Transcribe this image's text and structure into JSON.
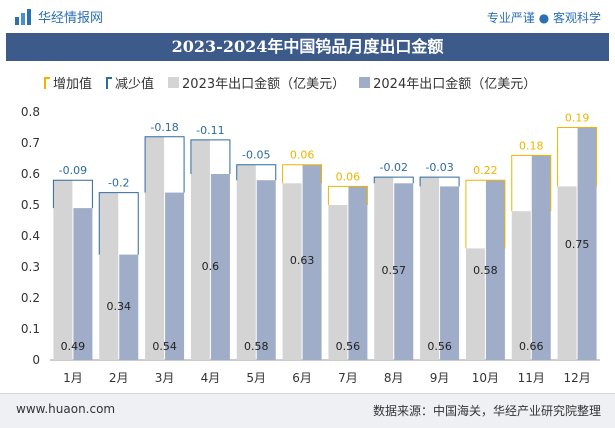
{
  "header": {
    "site_name": "华经情报网",
    "tagline": "专业严谨 ● 客观科学",
    "title": "2023-2024年中国钨品月度出口金额"
  },
  "legend": {
    "increase": "增加值",
    "decrease": "减少值",
    "series_2023": "2023年出口金额（亿美元）",
    "series_2024": "2024年出口金额（亿美元）"
  },
  "footer": {
    "website": "www.huaon.com",
    "source": "数据来源：中国海关，华经产业研究院整理"
  },
  "colors": {
    "bar_2023": "#d4d4d4",
    "bar_2024": "#9fadc8",
    "increase": "#f0b400",
    "decrease": "#2e6aa0",
    "title_band": "#3c5a8a"
  },
  "chart_data": {
    "type": "bar",
    "categories": [
      "1月",
      "2月",
      "3月",
      "4月",
      "5月",
      "6月",
      "7月",
      "8月",
      "9月",
      "10月",
      "11月",
      "12月"
    ],
    "series": [
      {
        "name": "2023年出口金额（亿美元）",
        "values": [
          0.58,
          0.54,
          0.72,
          0.71,
          0.63,
          0.57,
          0.5,
          0.59,
          0.59,
          0.36,
          0.48,
          0.56
        ]
      },
      {
        "name": "2024年出口金额（亿美元）",
        "values": [
          0.49,
          0.34,
          0.54,
          0.6,
          0.58,
          0.63,
          0.56,
          0.57,
          0.56,
          0.58,
          0.66,
          0.75
        ]
      }
    ],
    "change": [
      -0.09,
      -0.2,
      -0.18,
      -0.11,
      -0.05,
      0.06,
      0.06,
      -0.02,
      -0.03,
      0.22,
      0.18,
      0.19
    ],
    "change_labels": [
      "-0.09",
      "-0.2",
      "-0.18",
      "-0.11",
      "-0.05",
      "0.06",
      "0.06",
      "-0.02",
      "-0.03",
      "0.22",
      "0.18",
      "0.19"
    ],
    "value_labels_2024": [
      "0.49",
      "0.34",
      "0.54",
      "0.6",
      "0.58",
      "0.63",
      "0.56",
      "0.57",
      "0.56",
      "0.58",
      "0.66",
      "0.75"
    ],
    "ylim": [
      0,
      0.8
    ],
    "yticks": [
      "0",
      "0.1",
      "0.2",
      "0.3",
      "0.4",
      "0.5",
      "0.6",
      "0.7",
      "0.8"
    ],
    "legend_position": "top-left",
    "grid": false
  }
}
